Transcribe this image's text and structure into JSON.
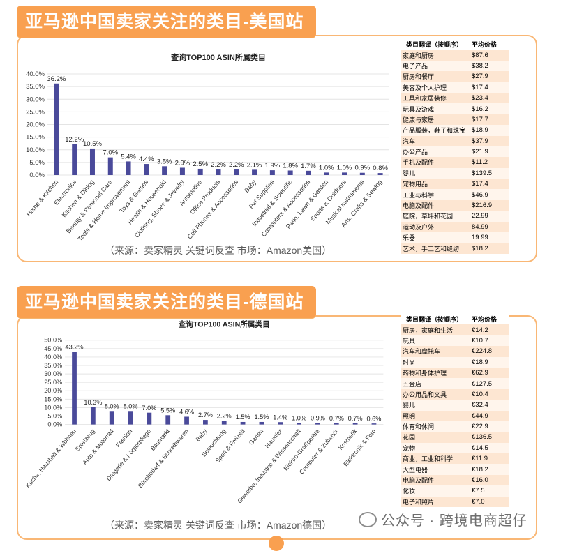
{
  "us": {
    "banner": "亚马逊中国卖家关注的类目-美国站",
    "caption": "（来源：卖家精灵 关键词反查      市场：Amazon美国）",
    "table": {
      "headers": [
        "类目翻译（按顺序）",
        "平均价格"
      ],
      "rows": [
        [
          "家庭和厨房",
          "$87.6"
        ],
        [
          "电子产品",
          "$38.2"
        ],
        [
          "厨房和餐厅",
          "$27.9"
        ],
        [
          "美容及个人护理",
          "$17.4"
        ],
        [
          "工具和家居装修",
          "$23.4"
        ],
        [
          "玩具及游戏",
          "$16.2"
        ],
        [
          "健康与家居",
          "$17.7"
        ],
        [
          "产品服装，鞋子和珠宝",
          "$18.9"
        ],
        [
          "汽车",
          "$37.9"
        ],
        [
          "办公产品",
          "$21.9"
        ],
        [
          "手机及配件",
          "$11.2"
        ],
        [
          "婴儿",
          "$139.5"
        ],
        [
          "宠物用品",
          "$17.4"
        ],
        [
          "工业与科学",
          "$46.9"
        ],
        [
          "电脑及配件",
          "$216.9"
        ],
        [
          "庭院，草坪和花园",
          "22.99"
        ],
        [
          "运动及户外",
          "84.99"
        ],
        [
          "乐器",
          "19.99"
        ],
        [
          "艺术，手工艺和缝纫",
          "$18.2"
        ]
      ]
    }
  },
  "de": {
    "banner": "亚马逊中国卖家关注的类目-德国站",
    "caption": "（来源：卖家精灵 关键词反查      市场：Amazon德国）",
    "table": {
      "headers": [
        "类目翻译（按顺序）",
        "平均价格"
      ],
      "rows": [
        [
          "厨房，家庭和生活",
          "€14.2"
        ],
        [
          "玩具",
          "€10.7"
        ],
        [
          "汽车和摩托车",
          "€224.8"
        ],
        [
          "时尚",
          "€18.9"
        ],
        [
          "药物和身体护理",
          "€62.9"
        ],
        [
          "五金店",
          "€127.5"
        ],
        [
          "办公用品和文具",
          "€10.4"
        ],
        [
          "婴儿",
          "€32.4"
        ],
        [
          "照明",
          "€44.9"
        ],
        [
          "体育和休闲",
          "€22.9"
        ],
        [
          "花园",
          "€136.5"
        ],
        [
          "宠物",
          "€14.5"
        ],
        [
          "商业，工业和科学",
          "€11.9"
        ],
        [
          "大型电器",
          "€18.2"
        ],
        [
          "电脑及配件",
          "€16.0"
        ],
        [
          "化妆",
          "€7.5"
        ],
        [
          "电子和照片",
          "€7.0"
        ]
      ]
    }
  },
  "watermark": "公众号 · 跨境电商超仔",
  "colors": {
    "bar": "#4a4a9a",
    "banner": "#f9a050",
    "border": "#f9b775"
  },
  "chart_data": [
    {
      "type": "bar",
      "title": "查询TOP100 ASIN所属类目",
      "categories": [
        "Home & Kitchen",
        "Electronics",
        "Kitchen & Dining",
        "Beauty & Personal Care",
        "Tools & Home Improvement",
        "Toys & Games",
        "Health & Household",
        "Clothing, Shoes & Jewelry",
        "Automotive",
        "Office Products",
        "Cell Phones & Accessories",
        "Baby",
        "Pet Supplies",
        "Industrial & Scientific",
        "Computers & Accessories",
        "Patio, Lawn & Garden",
        "Sports & Outdoors",
        "Musical Instruments",
        "Arts, Crafts & Sewing"
      ],
      "values": [
        36.2,
        12.2,
        10.5,
        7.0,
        5.4,
        4.4,
        3.5,
        2.9,
        2.5,
        2.2,
        2.2,
        2.1,
        1.9,
        1.8,
        1.7,
        1.0,
        1.0,
        0.9,
        0.8
      ],
      "value_labels": [
        "36.2%",
        "12.2%",
        "10.5%",
        "7.0%",
        "5.4%",
        "4.4%",
        "3.5%",
        "2.9%",
        "2.5%",
        "2.2%",
        "2.2%",
        "2.1%",
        "1.9%",
        "1.8%",
        "1.7%",
        "1.0%",
        "1.0%",
        "0.9%",
        "0.8%"
      ],
      "ylim": [
        0,
        40
      ],
      "yticks": [
        "0.0%",
        "5.0%",
        "10.0%",
        "15.0%",
        "20.0%",
        "25.0%",
        "30.0%",
        "35.0%",
        "40.0%"
      ],
      "grid": true
    },
    {
      "type": "bar",
      "title": "查询TOP100 ASIN所属类目",
      "categories": [
        "Küche, Haushalt & Wohnen",
        "Spielzeug",
        "Auto & Motorrad",
        "Fashion",
        "Drogerie & Körperpflege",
        "Baumarkt",
        "Bürobedarf & Schreibwaren",
        "Baby",
        "Beleuchtung",
        "Sport & Freizeit",
        "Garten",
        "Haustier",
        "Gewerbe, Industrie & Wissenschaft",
        "Elektro-Großgeräte",
        "Computer & Zubehör",
        "Kosmetik",
        "Elektronik & Foto"
      ],
      "values": [
        43.2,
        10.3,
        8.0,
        8.0,
        7.0,
        5.5,
        4.6,
        2.7,
        2.2,
        1.5,
        1.5,
        1.4,
        1.0,
        0.9,
        0.7,
        0.7,
        0.6
      ],
      "value_labels": [
        "43.2%",
        "10.3%",
        "8.0%",
        "8.0%",
        "7.0%",
        "5.5%",
        "4.6%",
        "2.7%",
        "2.2%",
        "1.5%",
        "1.5%",
        "1.4%",
        "1.0%",
        "0.9%",
        "0.7%",
        "0.7%",
        "0.6%"
      ],
      "ylim": [
        0,
        50
      ],
      "yticks": [
        "0.0%",
        "5.0%",
        "10.0%",
        "15.0%",
        "20.0%",
        "25.0%",
        "30.0%",
        "35.0%",
        "40.0%",
        "45.0%",
        "50.0%"
      ],
      "grid": true
    }
  ]
}
